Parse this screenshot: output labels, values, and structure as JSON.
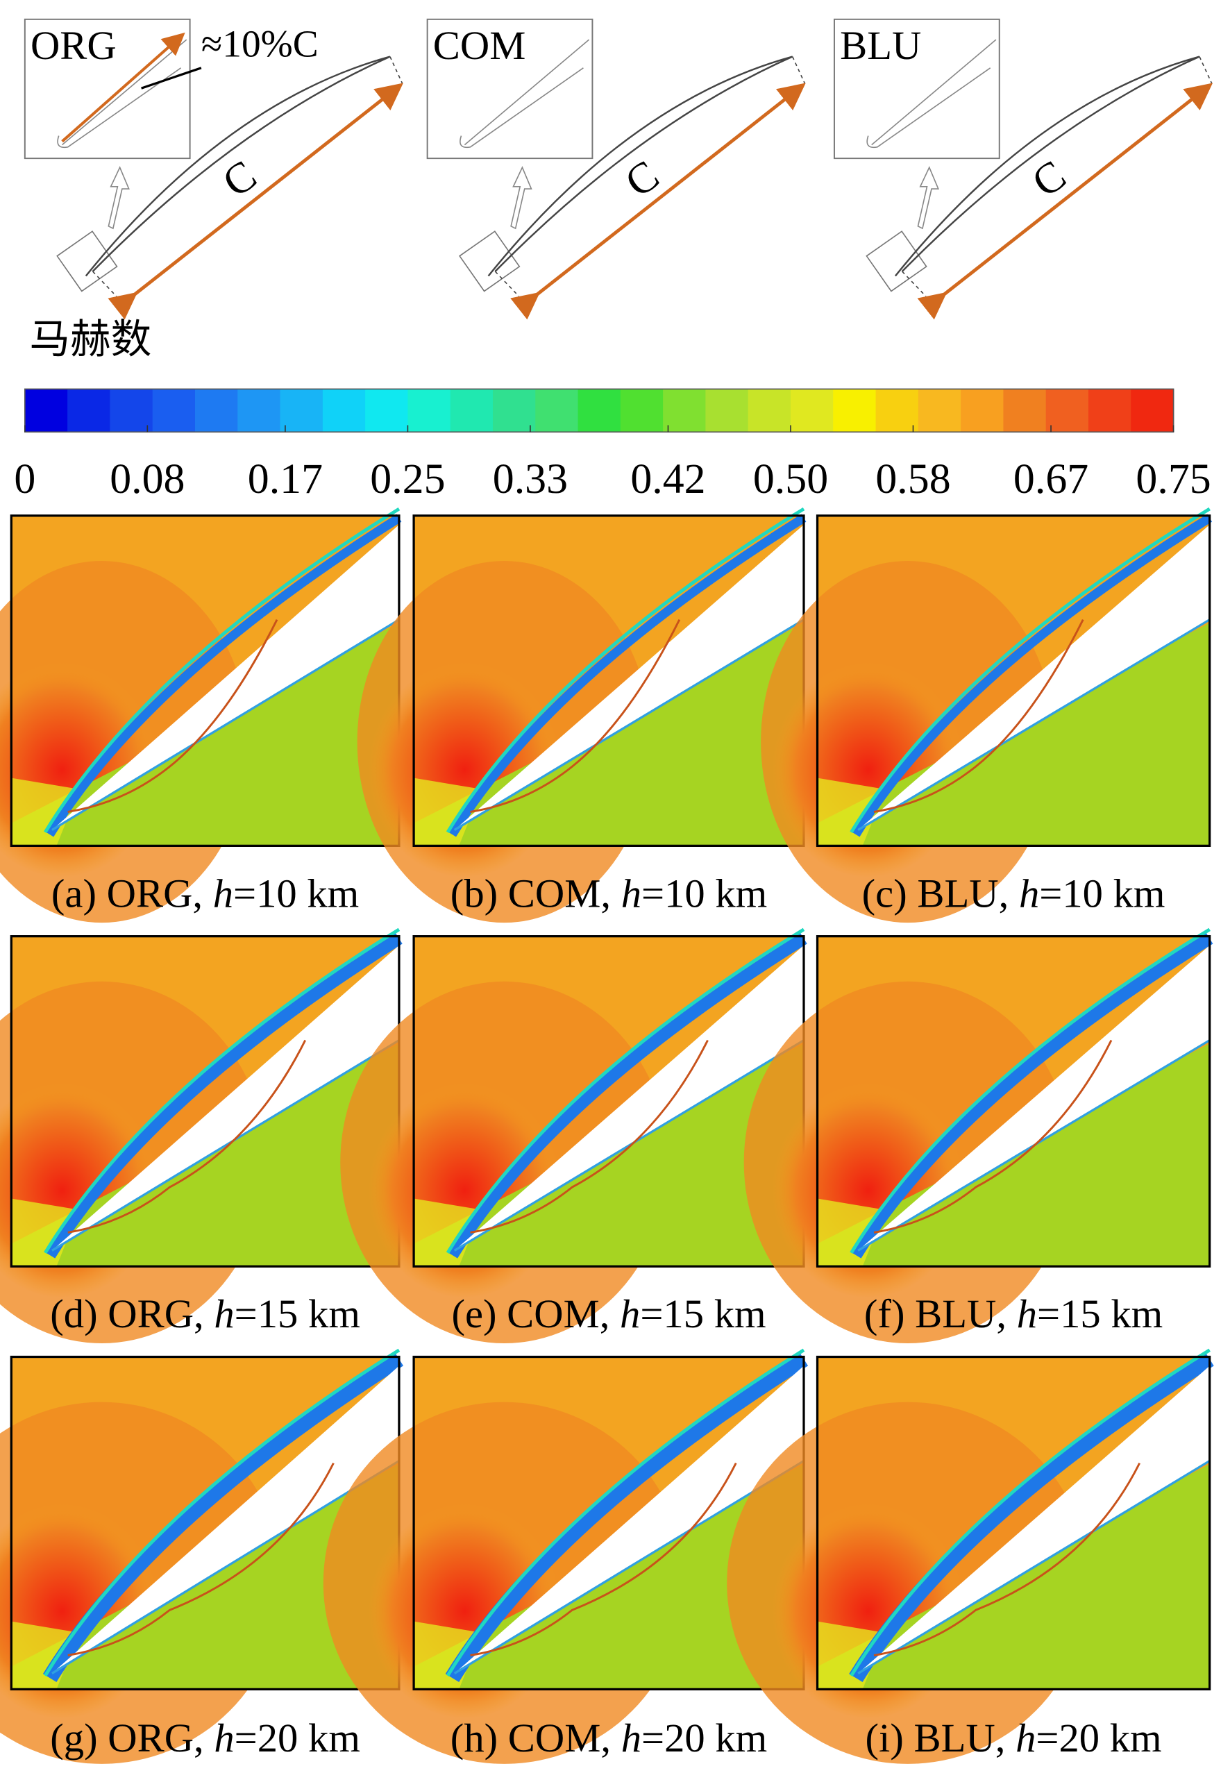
{
  "sketches": [
    {
      "label": "ORG",
      "chord": "C",
      "note": "≈10%C"
    },
    {
      "label": "COM",
      "chord": "C"
    },
    {
      "label": "BLU",
      "chord": "C"
    }
  ],
  "colorbar": {
    "title": "马赫数",
    "min": 0,
    "max": 0.75,
    "ticks": [
      0,
      0.08,
      0.17,
      0.25,
      0.33,
      0.42,
      {
        "value": 0.5,
        "label": "0.50"
      },
      0.58,
      0.67,
      0.75
    ],
    "colors": [
      "#0000e0",
      "#0a28e6",
      "#1446ea",
      "#1a5ef0",
      "#1e7af2",
      "#1e96f4",
      "#18b4f6",
      "#10d2f8",
      "#10e8f0",
      "#18f0d0",
      "#20e8b0",
      "#30e090",
      "#40e070",
      "#30e040",
      "#50e030",
      "#80e030",
      "#a8e030",
      "#c8e428",
      "#e0e820",
      "#f8f000",
      "#f8d010",
      "#f8b820",
      "#f8a020",
      "#f08020",
      "#f06020",
      "#f04018",
      "#f02810"
    ]
  },
  "panels": [
    {
      "prefix": "(a) ORG, ",
      "var": "h",
      "suffix": "=10 km"
    },
    {
      "prefix": "(b) COM, ",
      "var": "h",
      "suffix": "=10 km"
    },
    {
      "prefix": "(c) BLU, ",
      "var": "h",
      "suffix": "=10 km"
    },
    {
      "prefix": "(d) ORG, ",
      "var": "h",
      "suffix": "=15 km"
    },
    {
      "prefix": "(e) COM, ",
      "var": "h",
      "suffix": "=15 km"
    },
    {
      "prefix": "(f) BLU, ",
      "var": "h",
      "suffix": "=15 km"
    },
    {
      "prefix": "(g) ORG, ",
      "var": "h",
      "suffix": "=20 km"
    },
    {
      "prefix": "(h) COM, ",
      "var": "h",
      "suffix": "=20 km"
    },
    {
      "prefix": "(i) BLU, ",
      "var": "h",
      "suffix": "=20 km"
    }
  ]
}
